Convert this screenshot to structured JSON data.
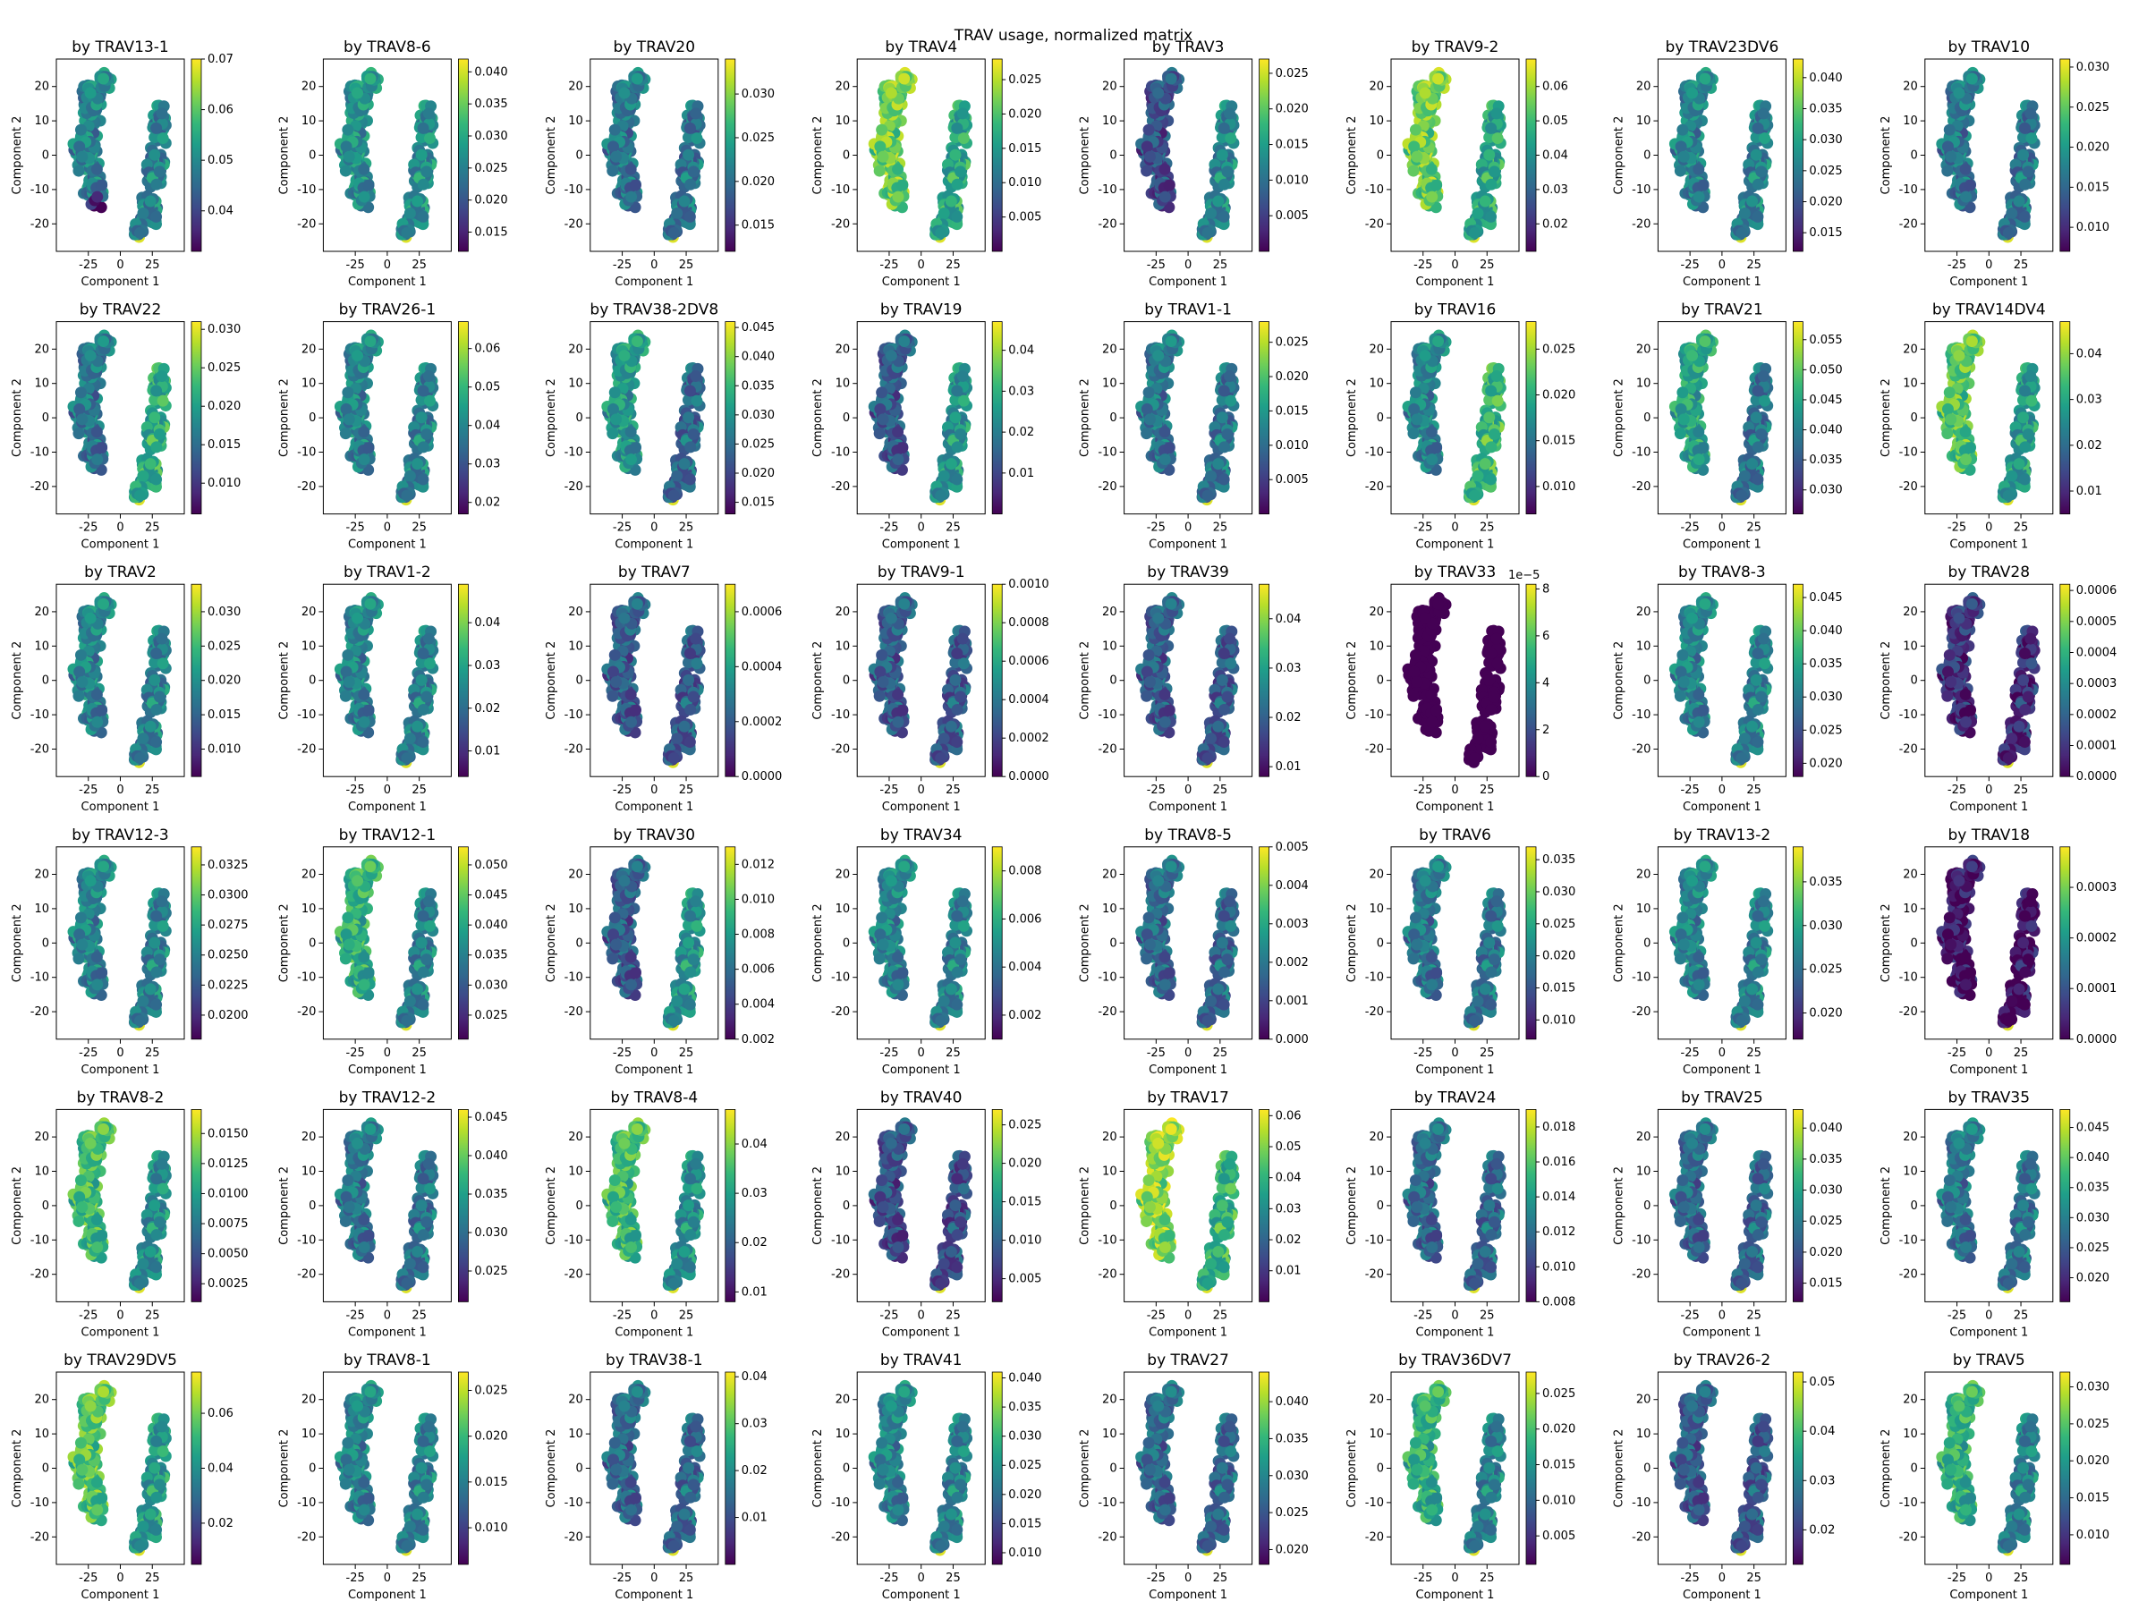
{
  "figure": {
    "suptitle": "TRAV usage, normalized matrix",
    "colormap": "viridis",
    "colormap_stops": [
      "#440154",
      "#482878",
      "#3e4989",
      "#31688e",
      "#26828e",
      "#1f9e89",
      "#35b779",
      "#6ece58",
      "#b5de2b",
      "#fde725"
    ]
  },
  "chart_data": {
    "type": "scatter",
    "layout": {
      "rows": 6,
      "cols": 8
    },
    "xlabel": "Component 1",
    "ylabel": "Component 2",
    "xticks": [
      "-25",
      "0",
      "25"
    ],
    "xtick_values": [
      -25,
      0,
      25
    ],
    "yticks": [
      "-20",
      "-10",
      "0",
      "10",
      "20"
    ],
    "ytick_values": [
      -20,
      -10,
      0,
      10,
      20
    ],
    "xlim": [
      -50,
      50
    ],
    "ylim": [
      -28,
      28
    ],
    "clusters": [
      {
        "name": "left",
        "x_range": [
          -40,
          -3
        ],
        "y_range": [
          -23,
          26
        ]
      },
      {
        "name": "right",
        "x_range": [
          3,
          42
        ],
        "y_range": [
          -25,
          20
        ]
      }
    ],
    "panels": [
      {
        "title": "by TRAV13-1",
        "cbar_ticks": [
          "0.04",
          "0.05",
          "0.06",
          "0.07"
        ],
        "cbar_range": [
          0.032,
          0.07
        ],
        "dominant_level": 0.45,
        "hot_zone": "left-bottom"
      },
      {
        "title": "by TRAV8-6",
        "cbar_ticks": [
          "0.015",
          "0.020",
          "0.025",
          "0.030",
          "0.035",
          "0.040"
        ],
        "cbar_range": [
          0.012,
          0.042
        ],
        "dominant_level": 0.5,
        "hot_zone": "none"
      },
      {
        "title": "by TRAV20",
        "cbar_ticks": [
          "0.015",
          "0.020",
          "0.025",
          "0.030"
        ],
        "cbar_range": [
          0.012,
          0.034
        ],
        "dominant_level": 0.4,
        "hot_zone": "none"
      },
      {
        "title": "by TRAV4",
        "cbar_ticks": [
          "0.005",
          "0.010",
          "0.015",
          "0.020",
          "0.025"
        ],
        "cbar_range": [
          0.0,
          0.028
        ],
        "dominant_level": 0.6,
        "hot_zone": "left"
      },
      {
        "title": "by TRAV3",
        "cbar_ticks": [
          "0.005",
          "0.010",
          "0.015",
          "0.020",
          "0.025"
        ],
        "cbar_range": [
          0.0,
          0.027
        ],
        "dominant_level": 0.25,
        "hot_zone": "right"
      },
      {
        "title": "by TRAV9-2",
        "cbar_ticks": [
          "0.02",
          "0.03",
          "0.04",
          "0.05",
          "0.06"
        ],
        "cbar_range": [
          0.012,
          0.068
        ],
        "dominant_level": 0.6,
        "hot_zone": "left"
      },
      {
        "title": "by TRAV23DV6",
        "cbar_ticks": [
          "0.015",
          "0.020",
          "0.025",
          "0.030",
          "0.035",
          "0.040"
        ],
        "cbar_range": [
          0.012,
          0.043
        ],
        "dominant_level": 0.45,
        "hot_zone": "none"
      },
      {
        "title": "by TRAV10",
        "cbar_ticks": [
          "0.010",
          "0.015",
          "0.020",
          "0.025",
          "0.030"
        ],
        "cbar_range": [
          0.007,
          0.031
        ],
        "dominant_level": 0.4,
        "hot_zone": "none"
      },
      {
        "title": "by TRAV22",
        "cbar_ticks": [
          "0.010",
          "0.015",
          "0.020",
          "0.025",
          "0.030"
        ],
        "cbar_range": [
          0.006,
          0.031
        ],
        "dominant_level": 0.4,
        "hot_zone": "right"
      },
      {
        "title": "by TRAV26-1",
        "cbar_ticks": [
          "0.02",
          "0.03",
          "0.04",
          "0.05",
          "0.06"
        ],
        "cbar_range": [
          0.017,
          0.067
        ],
        "dominant_level": 0.45,
        "hot_zone": "none"
      },
      {
        "title": "by TRAV38-2DV8",
        "cbar_ticks": [
          "0.015",
          "0.020",
          "0.025",
          "0.030",
          "0.035",
          "0.040",
          "0.045"
        ],
        "cbar_range": [
          0.013,
          0.046
        ],
        "dominant_level": 0.35,
        "hot_zone": "left"
      },
      {
        "title": "by TRAV19",
        "cbar_ticks": [
          "0.01",
          "0.02",
          "0.03",
          "0.04"
        ],
        "cbar_range": [
          0.0,
          0.047
        ],
        "dominant_level": 0.3,
        "hot_zone": "right"
      },
      {
        "title": "by TRAV1-1",
        "cbar_ticks": [
          "0.005",
          "0.010",
          "0.015",
          "0.020",
          "0.025"
        ],
        "cbar_range": [
          0.0,
          0.028
        ],
        "dominant_level": 0.4,
        "hot_zone": "none"
      },
      {
        "title": "by TRAV16",
        "cbar_ticks": [
          "0.010",
          "0.015",
          "0.020",
          "0.025"
        ],
        "cbar_range": [
          0.007,
          0.028
        ],
        "dominant_level": 0.45,
        "hot_zone": "right"
      },
      {
        "title": "by TRAV21",
        "cbar_ticks": [
          "0.030",
          "0.035",
          "0.040",
          "0.045",
          "0.050",
          "0.055"
        ],
        "cbar_range": [
          0.026,
          0.058
        ],
        "dominant_level": 0.4,
        "hot_zone": "left"
      },
      {
        "title": "by TRAV14DV4",
        "cbar_ticks": [
          "0.01",
          "0.02",
          "0.03",
          "0.04"
        ],
        "cbar_range": [
          0.005,
          0.047
        ],
        "dominant_level": 0.55,
        "hot_zone": "left"
      },
      {
        "title": "by TRAV2",
        "cbar_ticks": [
          "0.010",
          "0.015",
          "0.020",
          "0.025",
          "0.030"
        ],
        "cbar_range": [
          0.006,
          0.034
        ],
        "dominant_level": 0.45,
        "hot_zone": "none"
      },
      {
        "title": "by TRAV1-2",
        "cbar_ticks": [
          "0.01",
          "0.02",
          "0.03",
          "0.04"
        ],
        "cbar_range": [
          0.004,
          0.049
        ],
        "dominant_level": 0.45,
        "hot_zone": "none"
      },
      {
        "title": "by TRAV7",
        "cbar_ticks": [
          "0.0000",
          "0.0002",
          "0.0004",
          "0.0006"
        ],
        "cbar_range": [
          0.0,
          0.0007
        ],
        "dominant_level": 0.3,
        "hot_zone": "none"
      },
      {
        "title": "by TRAV9-1",
        "cbar_ticks": [
          "0.0000",
          "0.0002",
          "0.0004",
          "0.0006",
          "0.0008",
          "0.0010"
        ],
        "cbar_range": [
          0.0,
          0.001
        ],
        "dominant_level": 0.3,
        "hot_zone": "none"
      },
      {
        "title": "by TRAV39",
        "cbar_ticks": [
          "0.01",
          "0.02",
          "0.03",
          "0.04"
        ],
        "cbar_range": [
          0.008,
          0.047
        ],
        "dominant_level": 0.3,
        "hot_zone": "none"
      },
      {
        "title": "by TRAV33",
        "cbar_ticks": [
          "0",
          "2",
          "4",
          "6",
          "8"
        ],
        "cbar_range": [
          0,
          8.2
        ],
        "cbar_offset": "1e−5",
        "dominant_level": 0.0,
        "hot_zone": "none"
      },
      {
        "title": "by TRAV8-3",
        "cbar_ticks": [
          "0.020",
          "0.025",
          "0.030",
          "0.035",
          "0.040",
          "0.045"
        ],
        "cbar_range": [
          0.018,
          0.047
        ],
        "dominant_level": 0.45,
        "hot_zone": "none"
      },
      {
        "title": "by TRAV28",
        "cbar_ticks": [
          "0.0000",
          "0.0001",
          "0.0002",
          "0.0003",
          "0.0004",
          "0.0005",
          "0.0006"
        ],
        "cbar_range": [
          0.0,
          0.00062
        ],
        "dominant_level": 0.15,
        "hot_zone": "none"
      },
      {
        "title": "by TRAV12-3",
        "cbar_ticks": [
          "0.0200",
          "0.0225",
          "0.0250",
          "0.0275",
          "0.0300",
          "0.0325"
        ],
        "cbar_range": [
          0.018,
          0.034
        ],
        "dominant_level": 0.45,
        "hot_zone": "none"
      },
      {
        "title": "by TRAV12-1",
        "cbar_ticks": [
          "0.025",
          "0.030",
          "0.035",
          "0.040",
          "0.045",
          "0.050"
        ],
        "cbar_range": [
          0.021,
          0.053
        ],
        "dominant_level": 0.45,
        "hot_zone": "left"
      },
      {
        "title": "by TRAV30",
        "cbar_ticks": [
          "0.002",
          "0.004",
          "0.006",
          "0.008",
          "0.010",
          "0.012"
        ],
        "cbar_range": [
          0.002,
          0.013
        ],
        "dominant_level": 0.3,
        "hot_zone": "right"
      },
      {
        "title": "by TRAV34",
        "cbar_ticks": [
          "0.002",
          "0.004",
          "0.006",
          "0.008"
        ],
        "cbar_range": [
          0.001,
          0.009
        ],
        "dominant_level": 0.45,
        "hot_zone": "none"
      },
      {
        "title": "by TRAV8-5",
        "cbar_ticks": [
          "0.000",
          "0.001",
          "0.002",
          "0.003",
          "0.004",
          "0.005"
        ],
        "cbar_range": [
          0.0,
          0.005
        ],
        "dominant_level": 0.35,
        "hot_zone": "none"
      },
      {
        "title": "by TRAV6",
        "cbar_ticks": [
          "0.010",
          "0.015",
          "0.020",
          "0.025",
          "0.030",
          "0.035"
        ],
        "cbar_range": [
          0.007,
          0.037
        ],
        "dominant_level": 0.4,
        "hot_zone": "none"
      },
      {
        "title": "by TRAV13-2",
        "cbar_ticks": [
          "0.020",
          "0.025",
          "0.030",
          "0.035"
        ],
        "cbar_range": [
          0.017,
          0.039
        ],
        "dominant_level": 0.45,
        "hot_zone": "none"
      },
      {
        "title": "by TRAV18",
        "cbar_ticks": [
          "0.0000",
          "0.0001",
          "0.0002",
          "0.0003"
        ],
        "cbar_range": [
          0.0,
          0.00038
        ],
        "dominant_level": 0.05,
        "hot_zone": "none"
      },
      {
        "title": "by TRAV8-2",
        "cbar_ticks": [
          "0.0025",
          "0.0050",
          "0.0075",
          "0.0100",
          "0.0125",
          "0.0150"
        ],
        "cbar_range": [
          0.001,
          0.017
        ],
        "dominant_level": 0.5,
        "hot_zone": "left"
      },
      {
        "title": "by TRAV12-2",
        "cbar_ticks": [
          "0.025",
          "0.030",
          "0.035",
          "0.040",
          "0.045"
        ],
        "cbar_range": [
          0.021,
          0.046
        ],
        "dominant_level": 0.4,
        "hot_zone": "none"
      },
      {
        "title": "by TRAV8-4",
        "cbar_ticks": [
          "0.01",
          "0.02",
          "0.03",
          "0.04"
        ],
        "cbar_range": [
          0.008,
          0.047
        ],
        "dominant_level": 0.5,
        "hot_zone": "left"
      },
      {
        "title": "by TRAV40",
        "cbar_ticks": [
          "0.005",
          "0.010",
          "0.015",
          "0.020",
          "0.025"
        ],
        "cbar_range": [
          0.002,
          0.027
        ],
        "dominant_level": 0.25,
        "hot_zone": "none"
      },
      {
        "title": "by TRAV17",
        "cbar_ticks": [
          "0.01",
          "0.02",
          "0.03",
          "0.04",
          "0.05",
          "0.06"
        ],
        "cbar_range": [
          0.0,
          0.062
        ],
        "dominant_level": 0.65,
        "hot_zone": "left"
      },
      {
        "title": "by TRAV24",
        "cbar_ticks": [
          "0.008",
          "0.010",
          "0.012",
          "0.014",
          "0.016",
          "0.018"
        ],
        "cbar_range": [
          0.008,
          0.019
        ],
        "dominant_level": 0.35,
        "hot_zone": "none"
      },
      {
        "title": "by TRAV25",
        "cbar_ticks": [
          "0.015",
          "0.020",
          "0.025",
          "0.030",
          "0.035",
          "0.040"
        ],
        "cbar_range": [
          0.012,
          0.043
        ],
        "dominant_level": 0.35,
        "hot_zone": "none"
      },
      {
        "title": "by TRAV35",
        "cbar_ticks": [
          "0.020",
          "0.025",
          "0.030",
          "0.035",
          "0.040",
          "0.045"
        ],
        "cbar_range": [
          0.016,
          0.048
        ],
        "dominant_level": 0.4,
        "hot_zone": "none"
      },
      {
        "title": "by TRAV29DV5",
        "cbar_ticks": [
          "0.02",
          "0.04",
          "0.06"
        ],
        "cbar_range": [
          0.005,
          0.075
        ],
        "dominant_level": 0.55,
        "hot_zone": "left"
      },
      {
        "title": "by TRAV8-1",
        "cbar_ticks": [
          "0.010",
          "0.015",
          "0.020",
          "0.025"
        ],
        "cbar_range": [
          0.006,
          0.027
        ],
        "dominant_level": 0.45,
        "hot_zone": "none"
      },
      {
        "title": "by TRAV38-1",
        "cbar_ticks": [
          "0.01",
          "0.02",
          "0.03",
          "0.04"
        ],
        "cbar_range": [
          0.0,
          0.041
        ],
        "dominant_level": 0.35,
        "hot_zone": "none"
      },
      {
        "title": "by TRAV41",
        "cbar_ticks": [
          "0.010",
          "0.015",
          "0.020",
          "0.025",
          "0.030",
          "0.035",
          "0.040"
        ],
        "cbar_range": [
          0.008,
          0.041
        ],
        "dominant_level": 0.45,
        "hot_zone": "none"
      },
      {
        "title": "by TRAV27",
        "cbar_ticks": [
          "0.020",
          "0.025",
          "0.030",
          "0.035",
          "0.040"
        ],
        "cbar_range": [
          0.018,
          0.044
        ],
        "dominant_level": 0.35,
        "hot_zone": "none"
      },
      {
        "title": "by TRAV36DV7",
        "cbar_ticks": [
          "0.005",
          "0.010",
          "0.015",
          "0.020",
          "0.025"
        ],
        "cbar_range": [
          0.001,
          0.028
        ],
        "dominant_level": 0.45,
        "hot_zone": "left"
      },
      {
        "title": "by TRAV26-2",
        "cbar_ticks": [
          "0.02",
          "0.03",
          "0.04",
          "0.05"
        ],
        "cbar_range": [
          0.013,
          0.052
        ],
        "dominant_level": 0.3,
        "hot_zone": "none"
      },
      {
        "title": "by TRAV5",
        "cbar_ticks": [
          "0.010",
          "0.015",
          "0.020",
          "0.025",
          "0.030"
        ],
        "cbar_range": [
          0.006,
          0.032
        ],
        "dominant_level": 0.45,
        "hot_zone": "left"
      }
    ]
  }
}
